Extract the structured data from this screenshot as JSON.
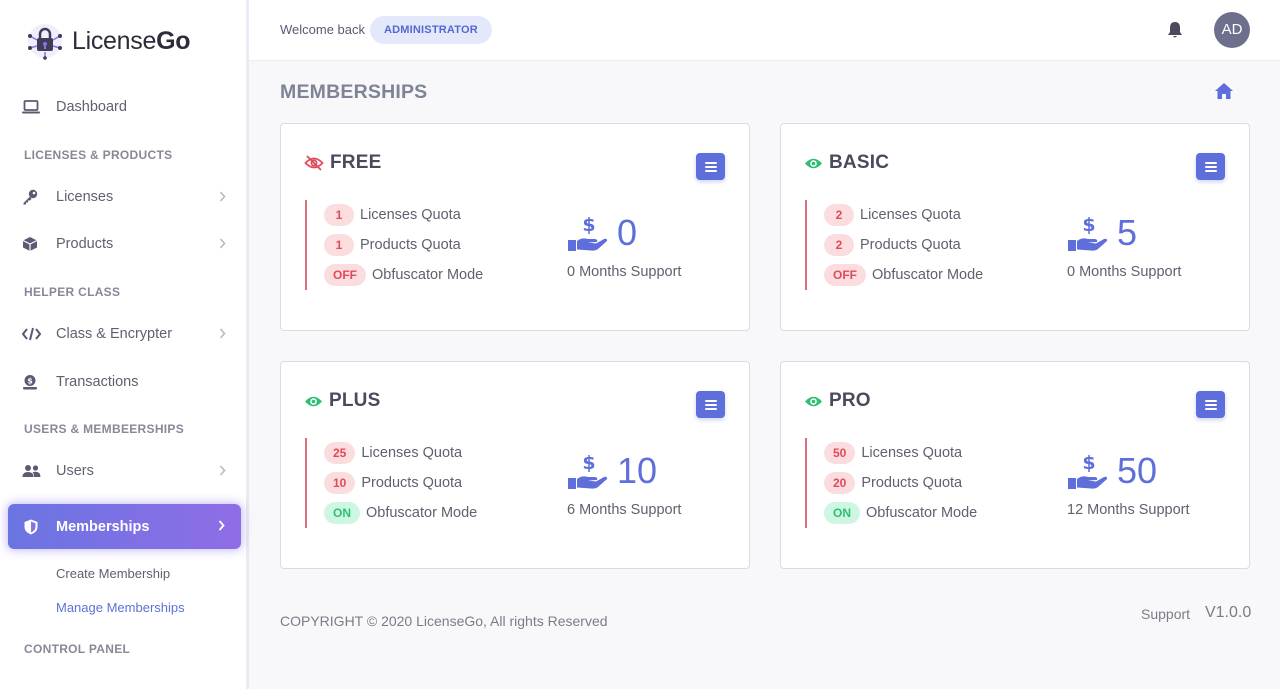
{
  "brand": {
    "name_prefix": "License",
    "name_suffix": "Go"
  },
  "sidebar": {
    "dashboard": "Dashboard",
    "heading_licenses": "LICENSES & PRODUCTS",
    "licenses": "Licenses",
    "products": "Products",
    "heading_helper": "HELPER CLASS",
    "class_encrypter": "Class & Encrypter",
    "transactions": "Transactions",
    "heading_users": "USERS & MEMBEERSHIPS",
    "users": "Users",
    "memberships": "Memberships",
    "create_membership": "Create Membership",
    "manage_memberships": "Manage Memberships",
    "heading_control": "CONTROL PANEL"
  },
  "header": {
    "welcome": "Welcome back",
    "role": "ADMINISTRATOR",
    "avatar_initials": "AD"
  },
  "page": {
    "title": "MEMBERSHIPS"
  },
  "cards": [
    {
      "name": "FREE",
      "visible": false,
      "licenses": "1",
      "licenses_label": "Licenses Quota",
      "products": "1",
      "products_label": "Products Quota",
      "obfuscator": "OFF",
      "obfuscator_label": "Obfuscator Mode",
      "price": "0",
      "support": "0 Months Support"
    },
    {
      "name": "BASIC",
      "visible": true,
      "licenses": "2",
      "licenses_label": "Licenses Quota",
      "products": "2",
      "products_label": "Products Quota",
      "obfuscator": "OFF",
      "obfuscator_label": "Obfuscator Mode",
      "price": "5",
      "support": "0 Months Support"
    },
    {
      "name": "PLUS",
      "visible": true,
      "licenses": "25",
      "licenses_label": "Licenses Quota",
      "products": "10",
      "products_label": "Products Quota",
      "obfuscator": "ON",
      "obfuscator_label": "Obfuscator Mode",
      "price": "10",
      "support": "6 Months Support"
    },
    {
      "name": "PRO",
      "visible": true,
      "licenses": "50",
      "licenses_label": "Licenses Quota",
      "products": "20",
      "products_label": "Products Quota",
      "obfuscator": "ON",
      "obfuscator_label": "Obfuscator Mode",
      "price": "50",
      "support": "12 Months Support"
    }
  ],
  "footer": {
    "copyright": "COPYRIGHT © 2020 LicenseGo, All rights Reserved",
    "support": "Support",
    "version": "V1.0.0"
  },
  "colors": {
    "accent": "#5e6fdb",
    "danger": "#e14a59",
    "success": "#2fbf74",
    "gradient_start": "#6a75e2",
    "gradient_end": "#8f6de6"
  },
  "icons": {
    "dashboard": "laptop-icon",
    "licenses": "key-icon",
    "products": "box-icon",
    "class": "code-icon",
    "transactions": "money-icon",
    "users": "users-icon",
    "memberships": "shield-icon",
    "bell": "bell-icon",
    "home": "home-icon",
    "visible": "eye-icon",
    "hidden": "eye-slash-icon",
    "menu": "list-icon",
    "price": "hand-dollar-icon"
  }
}
